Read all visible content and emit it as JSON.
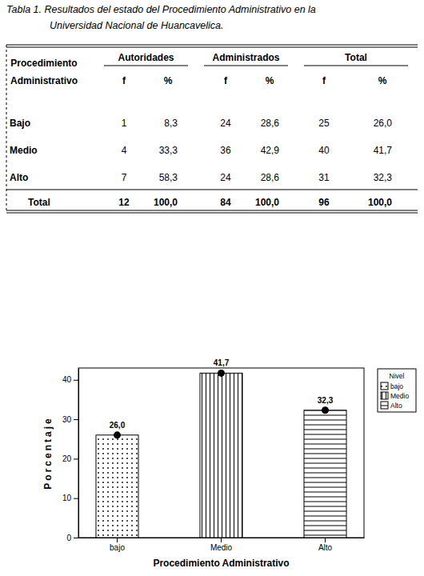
{
  "table": {
    "title": [
      "Tabla 1. Resultados del estado del Procedimiento Administrativo en la",
      "Universidad Nacional de Huancavelica."
    ],
    "header": {
      "row_label": [
        "Procedimiento",
        "Administrativo"
      ],
      "groups": [
        "Autoridades",
        "Administrados",
        "Total"
      ],
      "sub": [
        "f",
        "%"
      ]
    },
    "rows": [
      [
        "Bajo",
        "1",
        "8,3",
        "24",
        "28,6",
        "25",
        "26,0"
      ],
      [
        "Medio",
        "4",
        "33,3",
        "36",
        "42,9",
        "40",
        "41,7"
      ],
      [
        "Alto",
        "7",
        "58,3",
        "24",
        "28,6",
        "31",
        "32,3"
      ],
      [
        "Total",
        "12",
        "100,0",
        "84",
        "100,0",
        "96",
        "100,0"
      ]
    ]
  },
  "chart_data": {
    "type": "bar",
    "categories": [
      "bajo",
      "Medio",
      "Alto"
    ],
    "values": [
      26.0,
      41.7,
      32.3
    ],
    "value_labels": [
      "26,0",
      "41,7",
      "32,3"
    ],
    "data_labels": true,
    "marker": "circle",
    "color": "#000000",
    "x_label": "Procedimiento Administrativo",
    "y_label": "Porcentaje",
    "ylim": [
      0,
      43
    ],
    "yticks": [
      0,
      10,
      20,
      30,
      40
    ],
    "grid": false,
    "legend": "upper right",
    "legend_title": "Nivel"
  }
}
